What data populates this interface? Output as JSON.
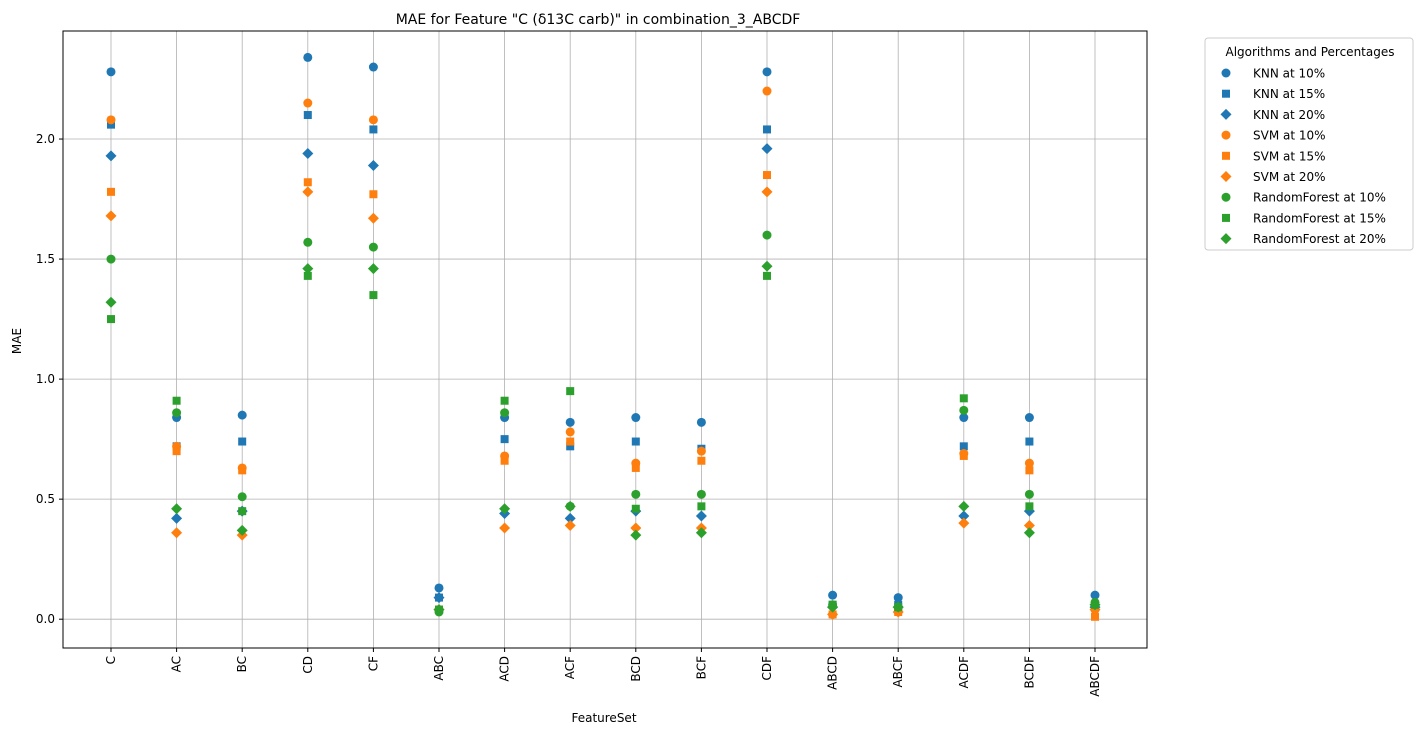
{
  "chart_data": {
    "type": "scatter",
    "title": "MAE for Feature \"C (δ13C carb)\" in combination_3_ABCDF",
    "xlabel": "FeatureSet",
    "ylabel": "MAE",
    "ylim": [
      -0.12,
      2.45
    ],
    "yticks": [
      "0.0",
      "0.5",
      "1.0",
      "1.5",
      "2.0"
    ],
    "grid": true,
    "legend_title": "Algorithms and Percentages",
    "legend_position": "outside-top-right",
    "categories": [
      "C",
      "AC",
      "BC",
      "CD",
      "CF",
      "ABC",
      "ACD",
      "ACF",
      "BCD",
      "BCF",
      "CDF",
      "ABCD",
      "ABCF",
      "ACDF",
      "BCDF",
      "ABCDF"
    ],
    "series": [
      {
        "name": "KNN at 10%",
        "color": "#1f77b4",
        "marker": "circle",
        "values": [
          2.28,
          0.84,
          0.85,
          2.34,
          2.3,
          0.13,
          0.84,
          0.82,
          0.84,
          0.82,
          2.28,
          0.1,
          0.09,
          0.84,
          0.84,
          0.1
        ]
      },
      {
        "name": "KNN at 15%",
        "color": "#1f77b4",
        "marker": "square",
        "values": [
          2.06,
          0.72,
          0.74,
          2.1,
          2.04,
          0.09,
          0.75,
          0.72,
          0.74,
          0.71,
          2.04,
          0.06,
          0.06,
          0.72,
          0.74,
          0.06
        ]
      },
      {
        "name": "KNN at 20%",
        "color": "#1f77b4",
        "marker": "diamond",
        "values": [
          1.93,
          0.42,
          0.45,
          1.94,
          1.89,
          0.09,
          0.44,
          0.42,
          0.45,
          0.43,
          1.96,
          0.05,
          0.05,
          0.43,
          0.45,
          0.05
        ]
      },
      {
        "name": "SVM at 10%",
        "color": "#ff7f0e",
        "marker": "circle",
        "values": [
          2.08,
          0.72,
          0.63,
          2.15,
          2.08,
          0.04,
          0.68,
          0.78,
          0.65,
          0.7,
          2.2,
          0.02,
          0.03,
          0.69,
          0.65,
          0.04
        ]
      },
      {
        "name": "SVM at 15%",
        "color": "#ff7f0e",
        "marker": "square",
        "values": [
          1.78,
          0.7,
          0.62,
          1.82,
          1.77,
          0.04,
          0.66,
          0.74,
          0.63,
          0.66,
          1.85,
          0.02,
          0.03,
          0.68,
          0.62,
          0.01
        ]
      },
      {
        "name": "SVM at 20%",
        "color": "#ff7f0e",
        "marker": "diamond",
        "values": [
          1.68,
          0.36,
          0.35,
          1.78,
          1.67,
          0.04,
          0.38,
          0.39,
          0.38,
          0.38,
          1.78,
          0.02,
          0.03,
          0.4,
          0.39,
          0.04
        ]
      },
      {
        "name": "RandomForest at 10%",
        "color": "#2ca02c",
        "marker": "circle",
        "values": [
          1.5,
          0.86,
          0.51,
          1.57,
          1.55,
          0.03,
          0.86,
          0.47,
          0.52,
          0.52,
          1.6,
          0.06,
          0.05,
          0.87,
          0.52,
          0.07
        ]
      },
      {
        "name": "RandomForest at 15%",
        "color": "#2ca02c",
        "marker": "square",
        "values": [
          1.25,
          0.91,
          0.45,
          1.43,
          1.35,
          0.04,
          0.91,
          0.95,
          0.46,
          0.47,
          1.43,
          0.06,
          0.05,
          0.92,
          0.47,
          0.06
        ]
      },
      {
        "name": "RandomForest at 20%",
        "color": "#2ca02c",
        "marker": "diamond",
        "values": [
          1.32,
          0.46,
          0.37,
          1.46,
          1.46,
          0.04,
          0.46,
          0.47,
          0.35,
          0.36,
          1.47,
          0.05,
          0.05,
          0.47,
          0.36,
          0.06
        ]
      }
    ]
  }
}
